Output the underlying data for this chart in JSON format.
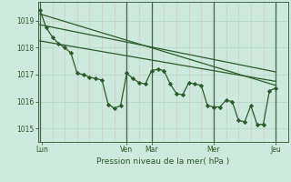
{
  "bg_color": "#cde8dd",
  "grid_color_h": "#b8d8cc",
  "grid_color_v": "#c8d8cc",
  "line_color": "#2a5c2a",
  "text_color": "#2a5c2a",
  "xlabel": "Pression niveau de la mer( hPa )",
  "ylim": [
    1014.5,
    1019.7
  ],
  "yticks": [
    1015,
    1016,
    1017,
    1018,
    1019
  ],
  "xlim": [
    -2,
    240
  ],
  "vline_major": [
    0,
    84,
    108,
    168,
    228
  ],
  "day_tick_pos": [
    2,
    84,
    108,
    168,
    228
  ],
  "day_labels": [
    "Lun",
    "Ven",
    "Mar",
    "Mer",
    "Jeu"
  ],
  "series1_x": [
    0,
    228
  ],
  "series1_y": [
    1019.25,
    1016.6
  ],
  "series2_x": [
    0,
    228
  ],
  "series2_y": [
    1018.25,
    1016.75
  ],
  "series3_x": [
    0,
    228
  ],
  "series3_y": [
    1018.85,
    1017.1
  ],
  "main_x": [
    0,
    6,
    12,
    18,
    24,
    30,
    36,
    42,
    48,
    54,
    60,
    66,
    72,
    78,
    84,
    90,
    96,
    102,
    108,
    114,
    120,
    126,
    132,
    138,
    144,
    150,
    156,
    162,
    168,
    174,
    180,
    186,
    192,
    198,
    204,
    210,
    216,
    222,
    228
  ],
  "main_y": [
    1019.4,
    1018.75,
    1018.4,
    1018.15,
    1018.0,
    1017.8,
    1017.05,
    1017.0,
    1016.9,
    1016.85,
    1016.8,
    1015.9,
    1015.75,
    1015.85,
    1017.05,
    1016.85,
    1016.7,
    1016.65,
    1017.15,
    1017.2,
    1017.15,
    1016.65,
    1016.3,
    1016.25,
    1016.7,
    1016.65,
    1016.6,
    1015.85,
    1015.8,
    1015.8,
    1016.05,
    1016.0,
    1015.3,
    1015.25,
    1015.85,
    1015.15,
    1015.15,
    1016.4,
    1016.5
  ]
}
